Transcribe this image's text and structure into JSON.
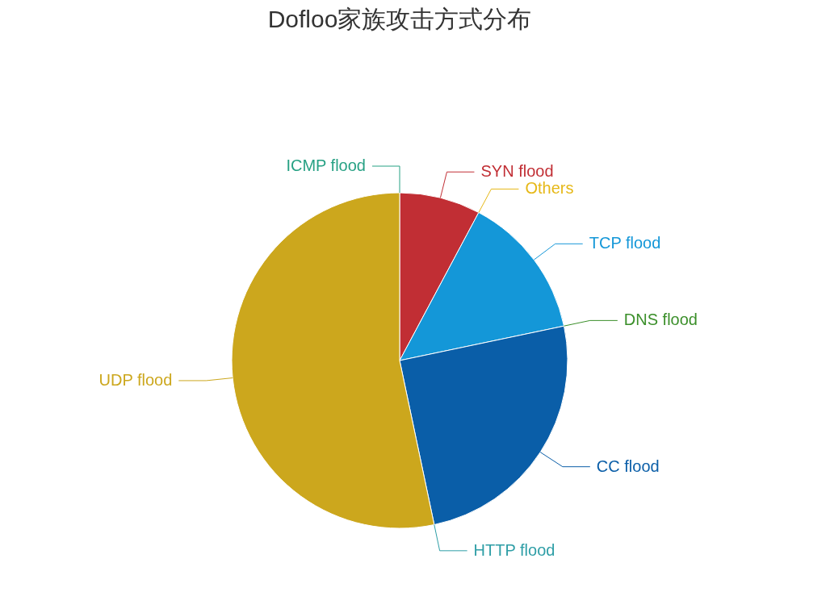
{
  "chart_data": {
    "type": "pie",
    "title": "Dofloo家族攻击方式分布",
    "categories": [
      "ICMP flood",
      "SYN flood",
      "Others",
      "TCP flood",
      "DNS flood",
      "CC flood",
      "HTTP flood",
      "UDP flood"
    ],
    "values": [
      0,
      7.8,
      0,
      13.9,
      0,
      25.0,
      0,
      53.3
    ],
    "colors": [
      "#27a184",
      "#c12e34",
      "#e6b817",
      "#1497d8",
      "#3b8f2a",
      "#0a5ea8",
      "#2e9ea6",
      "#cca71d"
    ]
  }
}
